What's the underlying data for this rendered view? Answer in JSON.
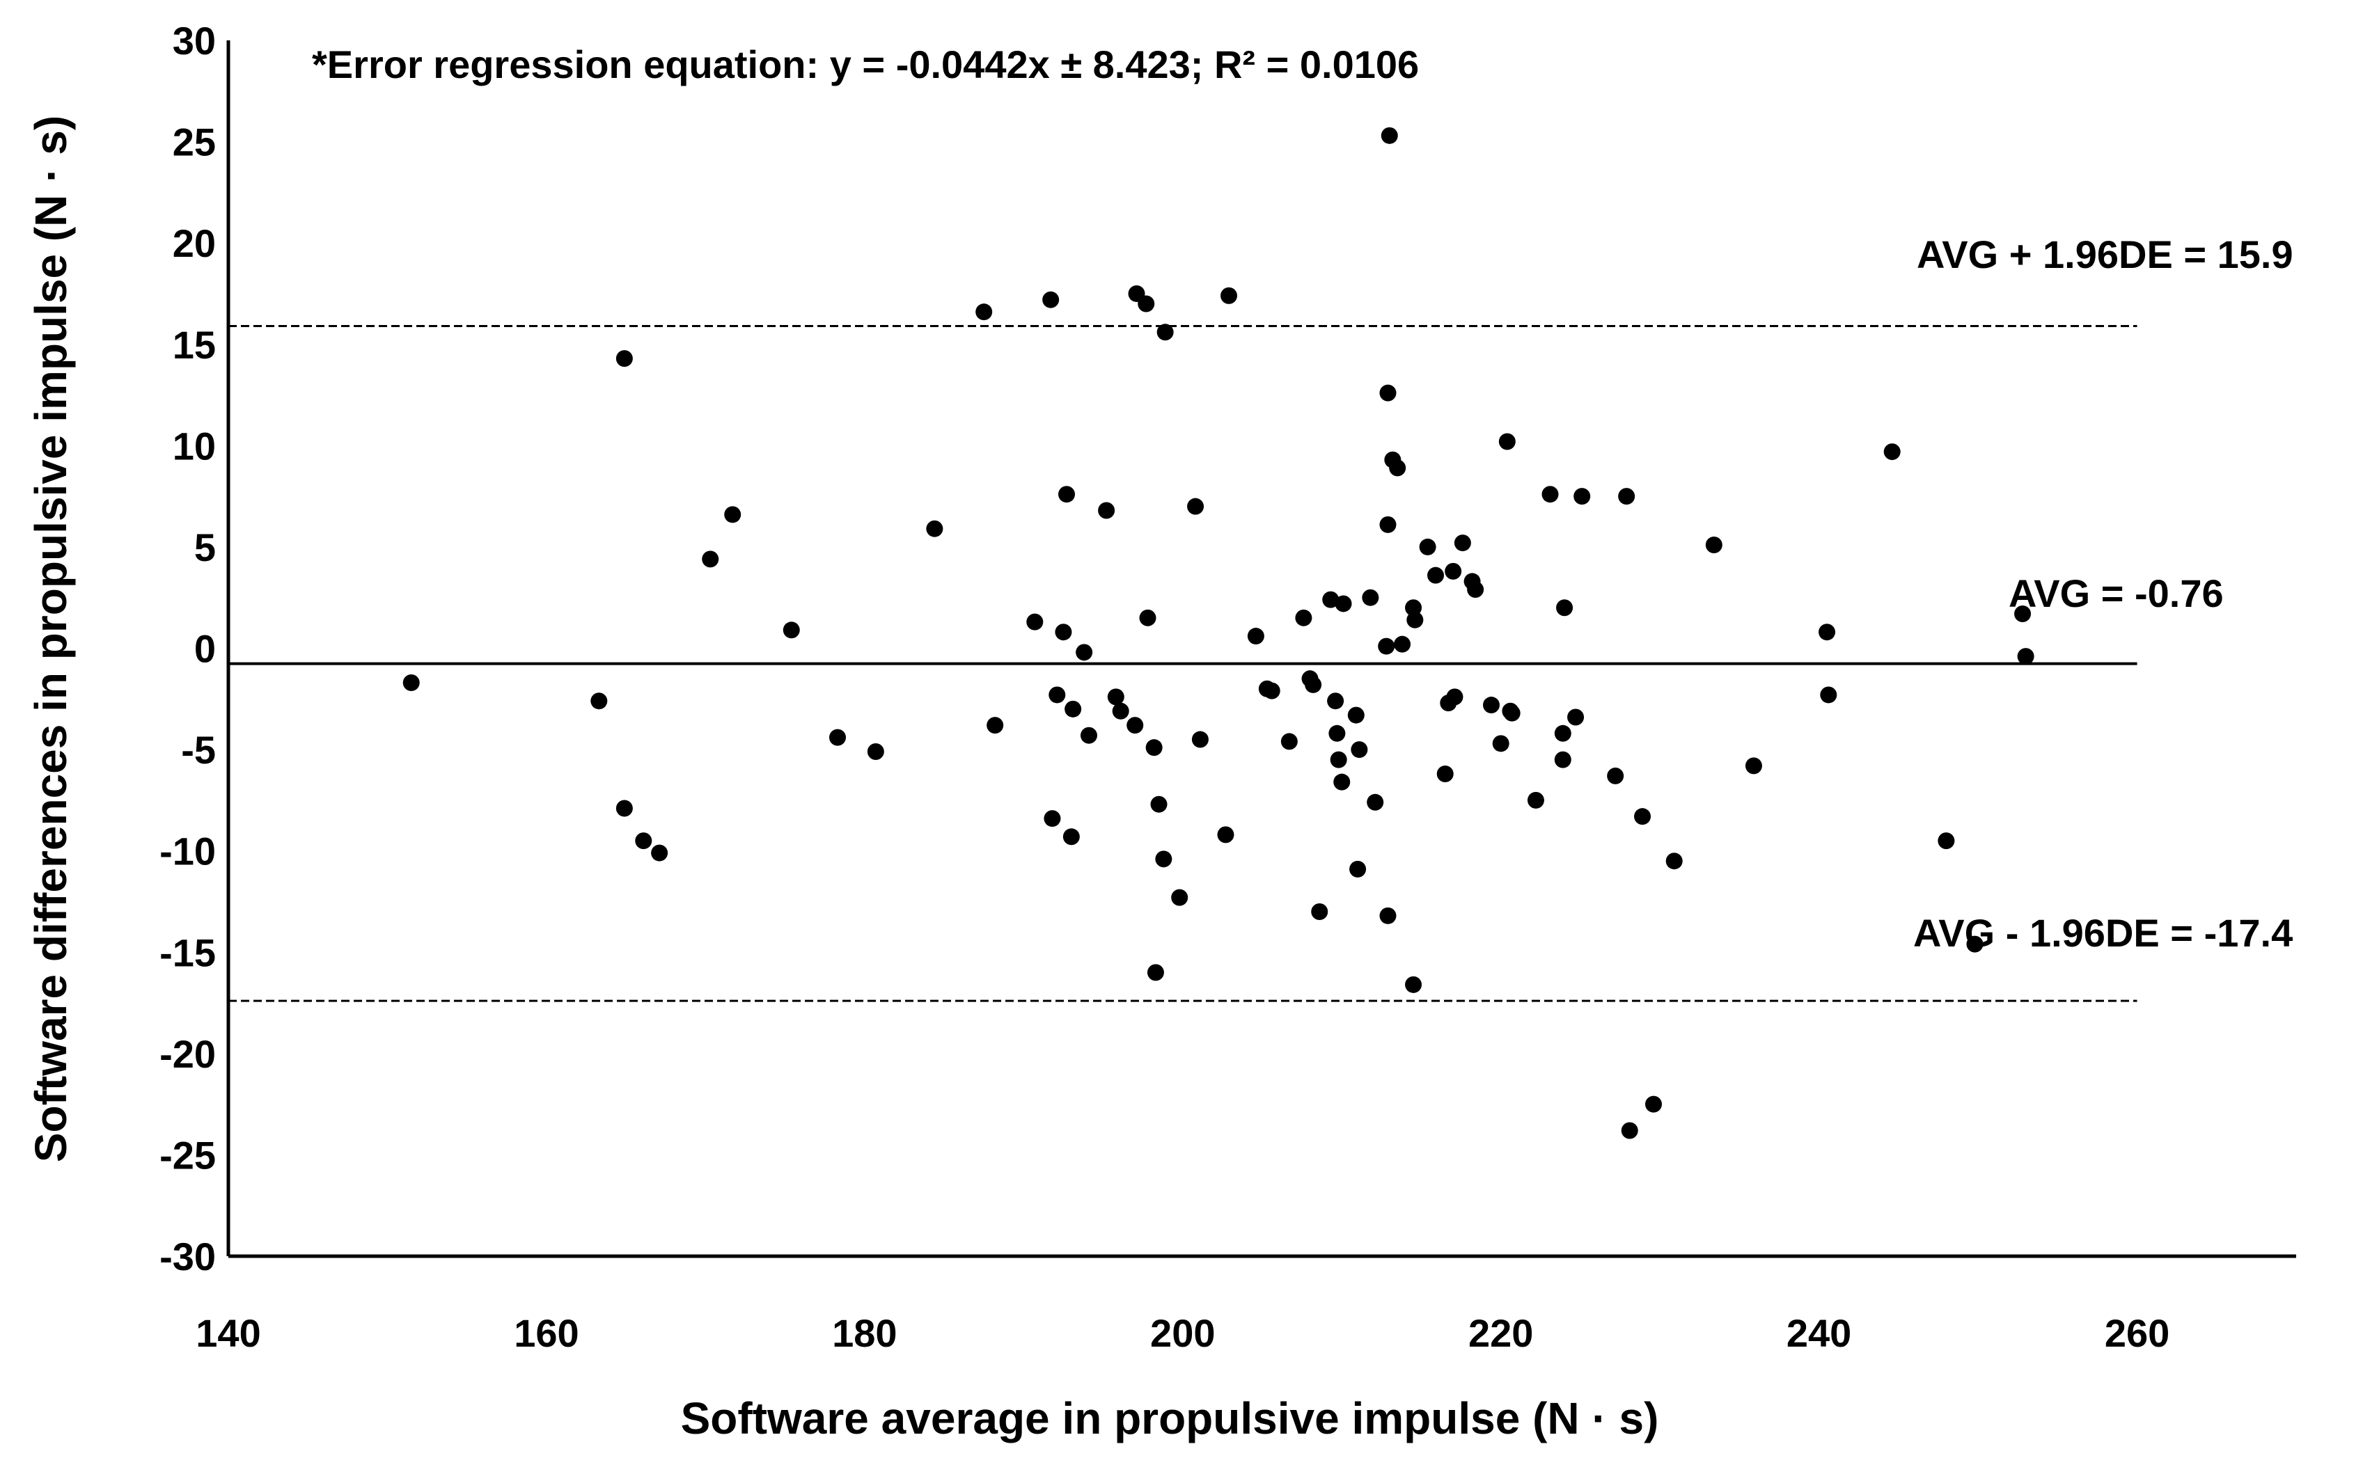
{
  "chart_data": {
    "type": "scatter",
    "title": "",
    "xlabel": "Software average in propulsive impulse (N · s)",
    "ylabel": "Software differences in propulsive impulse (N · s)",
    "xlim": [
      140,
      270
    ],
    "ylim": [
      -30,
      30
    ],
    "x_ticks": [
      140,
      160,
      180,
      200,
      220,
      240,
      260
    ],
    "y_ticks": [
      30,
      25,
      20,
      15,
      10,
      5,
      0,
      -5,
      -10,
      -15,
      -20,
      -25,
      -30
    ],
    "grid": false,
    "legend": "none",
    "marker_color": "#000000",
    "annotations": {
      "regression": "*Error regression equation: y = -0.0442x ± 8.423; R² = 0.0106",
      "upper_label": "AVG + 1.96DE = 15.9",
      "mean_label": "AVG = -0.76",
      "lower_label": "AVG - 1.96DE = -17.4"
    },
    "reference_lines": {
      "upper": 15.9,
      "mean": -0.76,
      "lower": -17.4,
      "x_end": 260
    },
    "points": [
      [
        151.5,
        -1.7
      ],
      [
        163.3,
        -2.6
      ],
      [
        164.9,
        14.3
      ],
      [
        164.9,
        -7.9
      ],
      [
        166.1,
        -9.5
      ],
      [
        167.1,
        -10.1
      ],
      [
        170.3,
        4.4
      ],
      [
        171.7,
        6.6
      ],
      [
        175.4,
        0.9
      ],
      [
        178.3,
        -4.4
      ],
      [
        180.7,
        -5.1
      ],
      [
        184.4,
        5.9
      ],
      [
        187.5,
        16.6
      ],
      [
        188.2,
        -3.8
      ],
      [
        190.7,
        1.3
      ],
      [
        191.7,
        17.2
      ],
      [
        191.8,
        -8.4
      ],
      [
        192.1,
        -2.3
      ],
      [
        192.5,
        0.8
      ],
      [
        192.7,
        7.6
      ],
      [
        193.0,
        -9.3
      ],
      [
        193.1,
        -3.0
      ],
      [
        193.8,
        -0.2
      ],
      [
        194.1,
        -4.3
      ],
      [
        195.2,
        6.8
      ],
      [
        195.8,
        -2.4
      ],
      [
        196.1,
        -3.1
      ],
      [
        197.0,
        -3.8
      ],
      [
        197.1,
        17.5
      ],
      [
        197.7,
        17.0
      ],
      [
        197.8,
        1.5
      ],
      [
        198.2,
        -4.9
      ],
      [
        198.5,
        -7.7
      ],
      [
        198.3,
        -16.0
      ],
      [
        198.8,
        -10.4
      ],
      [
        198.9,
        15.6
      ],
      [
        199.8,
        -12.3
      ],
      [
        200.8,
        7.0
      ],
      [
        201.1,
        -4.5
      ],
      [
        202.7,
        -9.2
      ],
      [
        202.9,
        17.4
      ],
      [
        204.6,
        0.6
      ],
      [
        205.3,
        -2.0
      ],
      [
        205.6,
        -2.1
      ],
      [
        206.7,
        -4.6
      ],
      [
        207.6,
        1.5
      ],
      [
        208.0,
        -1.5
      ],
      [
        208.2,
        -1.8
      ],
      [
        208.6,
        -13.0
      ],
      [
        209.3,
        2.4
      ],
      [
        209.6,
        -2.6
      ],
      [
        209.7,
        -4.2
      ],
      [
        209.8,
        -5.5
      ],
      [
        210.0,
        -6.6
      ],
      [
        210.1,
        2.2
      ],
      [
        210.9,
        -3.3
      ],
      [
        211.0,
        -10.9
      ],
      [
        211.1,
        -5.0
      ],
      [
        211.8,
        2.5
      ],
      [
        212.1,
        -7.6
      ],
      [
        212.8,
        0.1
      ],
      [
        212.9,
        -13.2
      ],
      [
        212.9,
        12.6
      ],
      [
        212.9,
        6.1
      ],
      [
        213.0,
        25.3
      ],
      [
        213.2,
        9.3
      ],
      [
        213.5,
        8.9
      ],
      [
        213.8,
        0.2
      ],
      [
        214.5,
        -16.6
      ],
      [
        214.5,
        2.0
      ],
      [
        214.6,
        1.4
      ],
      [
        215.4,
        5.0
      ],
      [
        215.9,
        3.6
      ],
      [
        216.5,
        -6.2
      ],
      [
        216.7,
        -2.7
      ],
      [
        217.0,
        3.8
      ],
      [
        217.1,
        -2.4
      ],
      [
        217.6,
        5.2
      ],
      [
        218.2,
        3.3
      ],
      [
        218.4,
        2.9
      ],
      [
        219.4,
        -2.8
      ],
      [
        220.0,
        -4.7
      ],
      [
        220.4,
        10.2
      ],
      [
        220.6,
        -3.1
      ],
      [
        220.7,
        -3.2
      ],
      [
        222.2,
        -7.5
      ],
      [
        223.1,
        7.6
      ],
      [
        223.9,
        -4.2
      ],
      [
        223.9,
        -5.5
      ],
      [
        224.0,
        2.0
      ],
      [
        224.7,
        -3.4
      ],
      [
        225.1,
        7.5
      ],
      [
        227.2,
        -6.3
      ],
      [
        227.9,
        7.5
      ],
      [
        228.1,
        -23.8
      ],
      [
        228.9,
        -8.3
      ],
      [
        229.6,
        -22.5
      ],
      [
        230.9,
        -10.5
      ],
      [
        233.4,
        5.1
      ],
      [
        235.9,
        -5.8
      ],
      [
        240.5,
        0.8
      ],
      [
        240.6,
        -2.3
      ],
      [
        244.6,
        9.7
      ],
      [
        248.0,
        -9.5
      ],
      [
        249.8,
        -14.6
      ],
      [
        252.8,
        1.7
      ],
      [
        253.0,
        -0.4
      ]
    ]
  }
}
